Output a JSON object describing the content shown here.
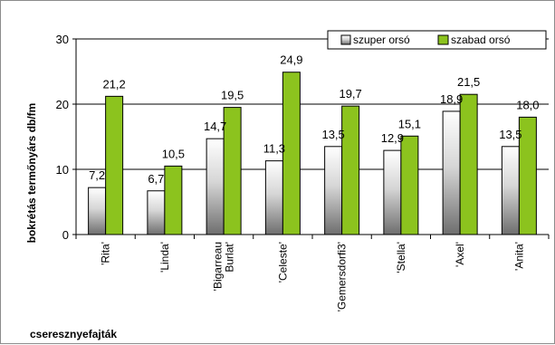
{
  "chart_data": {
    "type": "bar",
    "title": "",
    "ylabel": "bokrétás termőnyárs db/fm",
    "xlabel": "cseresznyefajták",
    "ylim": [
      0,
      30
    ],
    "yticks": [
      "0",
      "10",
      "20",
      "30"
    ],
    "grid": true,
    "legend_position": "top-right",
    "categories": [
      "'Rita'",
      "'Linda'",
      "'Bigarreau Burlat'",
      "'Celeste'",
      "'Gemersdorfi3'",
      "'Stella'",
      "'Axel'",
      "'Anita'"
    ],
    "category_lines": [
      [
        "'Rita'"
      ],
      [
        "'Linda'"
      ],
      [
        "'Bigarreau",
        "Burlat'"
      ],
      [
        "'Celeste'"
      ],
      [
        "'Gemersdorfi3'"
      ],
      [
        "'Stella'"
      ],
      [
        "'Axel'"
      ],
      [
        "'Anita'"
      ]
    ],
    "series": [
      {
        "name": "szuper orsó",
        "color": "#ffffff",
        "values": [
          7.2,
          6.7,
          14.7,
          11.3,
          13.5,
          12.9,
          18.9,
          13.5
        ],
        "labels": [
          "7,2",
          "6,7",
          "14,7",
          "11,3",
          "13,5",
          "12,9",
          "18,9",
          "13,5"
        ]
      },
      {
        "name": "szabad orsó",
        "color": "#8cc31e",
        "values": [
          21.2,
          10.5,
          19.5,
          24.9,
          19.7,
          15.1,
          21.5,
          18.0
        ],
        "labels": [
          "21,2",
          "10,5",
          "19,5",
          "24,9",
          "19,7",
          "15,1",
          "21,5",
          "18,0"
        ]
      }
    ]
  }
}
